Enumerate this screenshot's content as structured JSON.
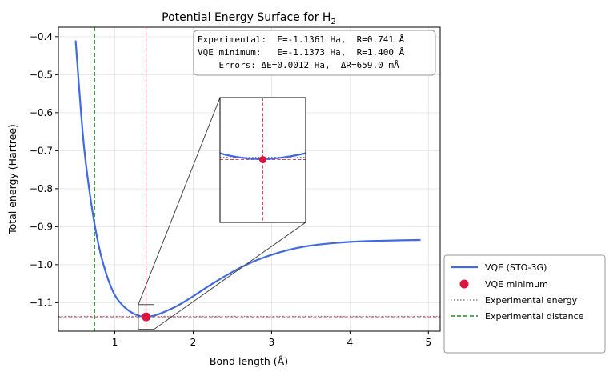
{
  "chart_data": {
    "type": "line",
    "title": "Potential Energy Surface for H",
    "title_subscript": "2",
    "xlabel": "Bond length (Å)",
    "ylabel": "Total energy (Hartree)",
    "xlim": [
      0.28,
      5.15
    ],
    "ylim": [
      -1.175,
      -0.375
    ],
    "xticks": [
      1,
      2,
      3,
      4,
      5
    ],
    "yticks": [
      -1.1,
      -1.0,
      -0.9,
      -0.8,
      -0.7,
      -0.6,
      -0.5,
      -0.4
    ],
    "xtick_labels": [
      "1",
      "2",
      "3",
      "4",
      "5"
    ],
    "ytick_labels": [
      "−1.1",
      "−1.0",
      "−0.9",
      "−0.8",
      "−0.7",
      "−0.6",
      "−0.5",
      "−0.4"
    ],
    "grid": true,
    "legend_position": "outside-lower-right",
    "colors": {
      "vqe_line": "#4169e1",
      "vqe_min": "#dc143c",
      "exp_energy": "#808080",
      "exp_distance": "#228b22",
      "vqe_guide": "#dc143c"
    },
    "series": [
      {
        "name": "VQE (STO-3G)",
        "x": [
          0.5,
          0.6,
          0.7,
          0.8,
          0.9,
          1.0,
          1.1,
          1.2,
          1.3,
          1.4,
          1.5,
          1.6,
          1.8,
          2.0,
          2.2,
          2.4,
          2.6,
          2.8,
          3.0,
          3.2,
          3.4,
          3.6,
          3.8,
          4.0,
          4.2,
          4.4,
          4.6,
          4.9
        ],
        "y": [
          -0.41,
          -0.675,
          -0.84,
          -0.955,
          -1.03,
          -1.08,
          -1.107,
          -1.124,
          -1.134,
          -1.137,
          -1.134,
          -1.127,
          -1.108,
          -1.083,
          -1.056,
          -1.031,
          -1.008,
          -0.989,
          -0.974,
          -0.962,
          -0.953,
          -0.947,
          -0.943,
          -0.94,
          -0.938,
          -0.937,
          -0.936,
          -0.935
        ]
      }
    ],
    "vqe_minimum": {
      "name": "VQE minimum",
      "x": 1.4,
      "y": -1.1373
    },
    "experimental_energy": {
      "name": "Experimental energy",
      "y": -1.1361
    },
    "experimental_distance": {
      "name": "Experimental distance",
      "x": 0.741
    },
    "zoom_region": {
      "xlim": [
        1.3,
        1.5
      ],
      "ylim": [
        -1.17,
        -1.105
      ]
    },
    "inset": {
      "xlim": [
        1.3,
        1.5
      ],
      "ylim": [
        -1.17,
        -1.105
      ]
    },
    "annotation_lines": [
      "Experimental:  E=-1.1361 Ha,  R=0.741 Å",
      "VQE minimum:   E=-1.1373 Ha,  R=1.400 Å",
      "    Errors: ΔE=0.0012 Ha,  ΔR=659.0 mÅ"
    ],
    "legend": [
      {
        "label": "VQE (STO-3G)",
        "kind": "line"
      },
      {
        "label": "VQE minimum",
        "kind": "marker"
      },
      {
        "label": "Experimental energy",
        "kind": "dotted"
      },
      {
        "label": "Experimental distance",
        "kind": "dashed"
      }
    ]
  }
}
